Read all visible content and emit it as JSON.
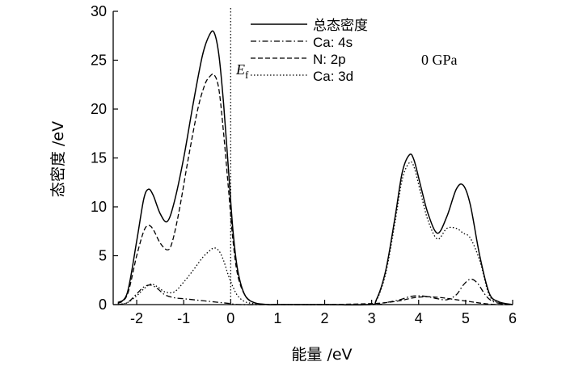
{
  "chart_data": {
    "type": "line",
    "title": "",
    "xlabel": "能量 /eV",
    "ylabel": "态密度 /eV",
    "xlim": [
      -2.5,
      6
    ],
    "ylim": [
      0,
      30
    ],
    "xticks": [
      -2,
      -1,
      0,
      1,
      2,
      3,
      4,
      5,
      6
    ],
    "yticks": [
      0,
      5,
      10,
      15,
      20,
      25,
      30
    ],
    "grid": false,
    "legend_position": "top-center",
    "annotations": [
      {
        "text_main": "E",
        "text_sub": "f",
        "x": 0
      },
      {
        "text": "0 GPa"
      }
    ],
    "fermi_level": 0,
    "series": [
      {
        "name": "总态密度",
        "style": "solid",
        "x": [
          -2.4,
          -2.2,
          -2.0,
          -1.85,
          -1.75,
          -1.65,
          -1.5,
          -1.35,
          -1.2,
          -1.0,
          -0.8,
          -0.6,
          -0.45,
          -0.35,
          -0.25,
          -0.15,
          -0.05,
          0.05,
          0.15,
          0.3,
          0.5,
          0.8,
          1.0,
          2.0,
          2.95,
          3.1,
          3.3,
          3.5,
          3.65,
          3.8,
          3.9,
          4.05,
          4.2,
          4.4,
          4.6,
          4.8,
          4.95,
          5.1,
          5.3,
          5.5,
          5.7,
          6.0
        ],
        "y": [
          0.2,
          1.2,
          6.5,
          10.8,
          11.8,
          11.2,
          9.3,
          8.5,
          10.5,
          15.0,
          20.5,
          25.5,
          27.6,
          27.8,
          25.5,
          20.5,
          14.0,
          7.5,
          3.5,
          1.0,
          0.2,
          0,
          0,
          0,
          0,
          0.5,
          3.5,
          9.0,
          13.5,
          15.3,
          14.8,
          12.0,
          9.3,
          7.3,
          9.0,
          11.8,
          12.2,
          10.2,
          5.0,
          1.2,
          0.3,
          0
        ]
      },
      {
        "name": "Ca: 4s",
        "style": "dashdot",
        "x": [
          -2.4,
          -2.2,
          -2.0,
          -1.85,
          -1.7,
          -1.55,
          -1.4,
          -1.2,
          -1.0,
          -0.8,
          -0.6,
          -0.4,
          -0.2,
          0.0,
          0.2,
          1.0,
          3.0,
          3.3,
          3.6,
          3.8,
          4.0,
          4.2,
          4.4,
          4.6,
          4.8,
          4.95,
          5.1,
          5.25,
          5.45,
          5.65,
          6.0
        ],
        "y": [
          0,
          0.2,
          1.1,
          1.8,
          2.0,
          1.6,
          1.0,
          0.7,
          0.6,
          0.5,
          0.4,
          0.3,
          0.2,
          0.1,
          0,
          0,
          0,
          0.2,
          0.5,
          0.8,
          0.9,
          0.8,
          0.6,
          0.5,
          1.0,
          2.0,
          2.6,
          2.2,
          0.8,
          0.2,
          0
        ]
      },
      {
        "name": "N: 2p",
        "style": "dashed",
        "x": [
          -2.4,
          -2.2,
          -2.0,
          -1.85,
          -1.75,
          -1.65,
          -1.5,
          -1.35,
          -1.25,
          -1.1,
          -0.9,
          -0.7,
          -0.55,
          -0.45,
          -0.35,
          -0.25,
          -0.15,
          -0.05,
          0.05,
          0.15,
          0.3,
          0.5,
          0.8,
          1.0,
          2.0,
          3.0,
          3.3,
          3.6,
          3.9,
          4.2,
          4.5,
          4.8,
          5.1,
          5.4,
          5.7,
          6.0
        ],
        "y": [
          0.1,
          1.0,
          5.0,
          7.5,
          8.1,
          7.7,
          6.3,
          5.6,
          6.3,
          9.5,
          15.0,
          20.0,
          22.5,
          23.3,
          23.5,
          22.0,
          17.5,
          12.0,
          6.5,
          3.0,
          1.0,
          0.2,
          0,
          0,
          0,
          0.1,
          0.2,
          0.4,
          0.7,
          0.8,
          0.7,
          0.5,
          0.3,
          0.1,
          0,
          0
        ]
      },
      {
        "name": "Ca: 3d",
        "style": "dotted",
        "x": [
          -2.4,
          -2.2,
          -2.0,
          -1.85,
          -1.7,
          -1.55,
          -1.4,
          -1.2,
          -1.0,
          -0.8,
          -0.6,
          -0.45,
          -0.35,
          -0.25,
          -0.15,
          -0.05,
          0.05,
          0.15,
          0.3,
          0.5,
          0.8,
          1.0,
          2.0,
          2.95,
          3.1,
          3.3,
          3.5,
          3.65,
          3.8,
          3.9,
          4.05,
          4.2,
          4.4,
          4.6,
          4.8,
          4.95,
          5.1,
          5.3,
          5.5,
          5.7,
          6.0
        ],
        "y": [
          0,
          0.2,
          0.9,
          1.6,
          2.1,
          1.8,
          1.3,
          1.3,
          2.3,
          3.5,
          4.8,
          5.5,
          5.8,
          5.5,
          4.5,
          3.0,
          1.8,
          0.9,
          0.3,
          0.1,
          0,
          0,
          0,
          0,
          0.4,
          3.2,
          8.5,
          12.8,
          14.5,
          14.1,
          11.3,
          8.6,
          6.7,
          7.8,
          7.8,
          7.3,
          6.8,
          4.5,
          1.0,
          0.2,
          0
        ]
      }
    ]
  }
}
